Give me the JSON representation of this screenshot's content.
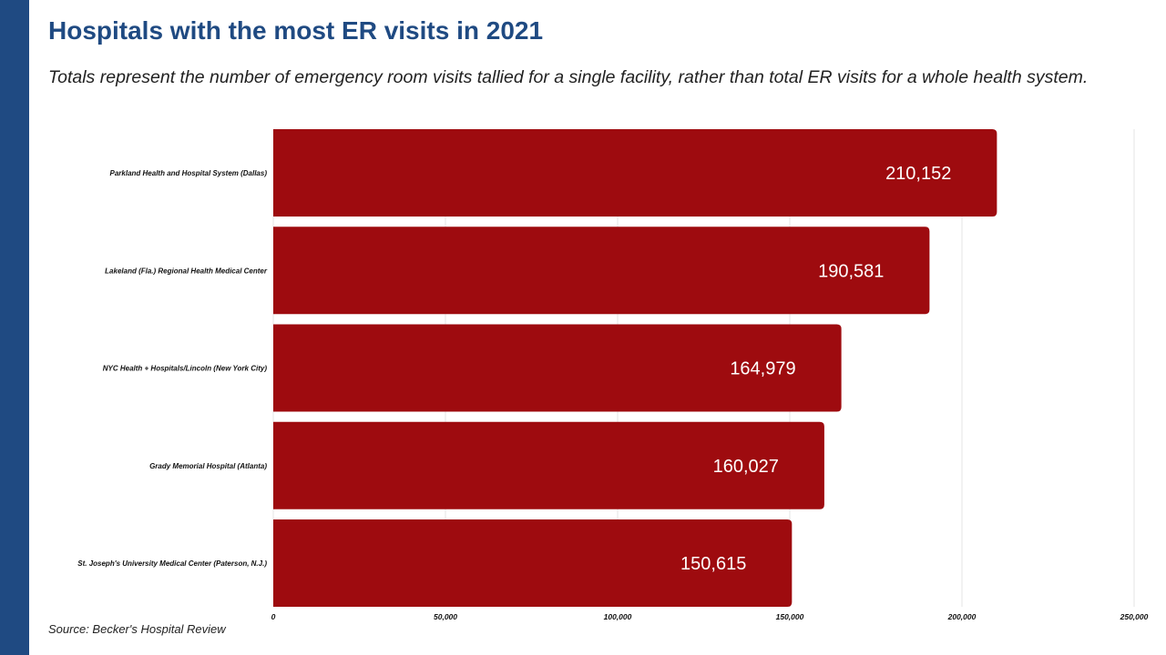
{
  "header": {
    "title": "Hospitals with the most ER visits in 2021",
    "subtitle": "Totals represent the number of emergency room visits tallied for a single facility, rather than total ER visits for a whole health system."
  },
  "footer": {
    "source": "Source: Becker's Hospital Review"
  },
  "colors": {
    "bar": "#9e0b0f",
    "sidebar": "#1f4a82",
    "title": "#1f4a82",
    "grid": "#e6e6e6"
  },
  "chart_data": {
    "type": "bar",
    "orientation": "horizontal",
    "categories": [
      "Parkland Health and Hospital System (Dallas)",
      "Lakeland (Fla.) Regional Health Medical Center",
      "NYC Health + Hospitals/Lincoln (New York City)",
      "Grady Memorial Hospital (Atlanta)",
      "St. Joseph's University Medical Center (Paterson, N.J.)"
    ],
    "values": [
      210152,
      190581,
      164979,
      160027,
      150615
    ],
    "data_labels": [
      "210,152",
      "190,581",
      "164,979",
      "160,027",
      "150,615"
    ],
    "xlim": [
      0,
      250000
    ],
    "xticks": [
      0,
      50000,
      100000,
      150000,
      200000,
      250000
    ],
    "xtick_labels": [
      "0",
      "50,000",
      "100,000",
      "150,000",
      "200,000",
      "250,000"
    ],
    "grid": true
  }
}
